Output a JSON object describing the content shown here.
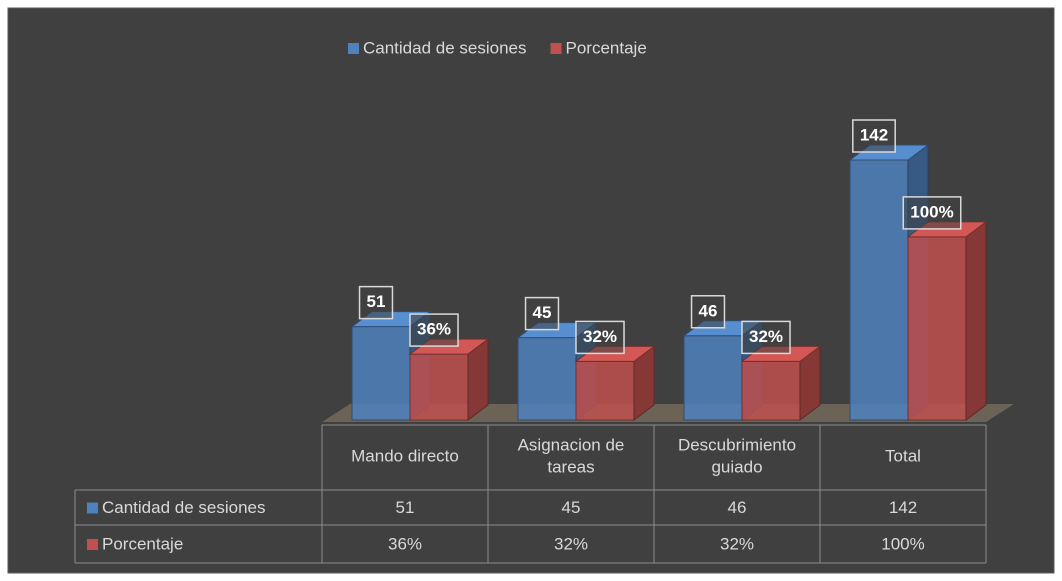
{
  "chart_data": {
    "type": "bar3d",
    "categories": [
      "Mando directo",
      "Asignacion de tareas",
      "Descubrimiento guiado",
      "Total"
    ],
    "series": [
      {
        "name": "Cantidad de sesiones",
        "color": "#4f81bd",
        "values": [
          51,
          45,
          46,
          142
        ]
      },
      {
        "name": "Porcentaje",
        "color": "#c0504d",
        "values": [
          36,
          32,
          32,
          100
        ],
        "value_labels": [
          "36%",
          "32%",
          "32%",
          "100%"
        ]
      }
    ],
    "legend": "top",
    "data_table": true
  }
}
